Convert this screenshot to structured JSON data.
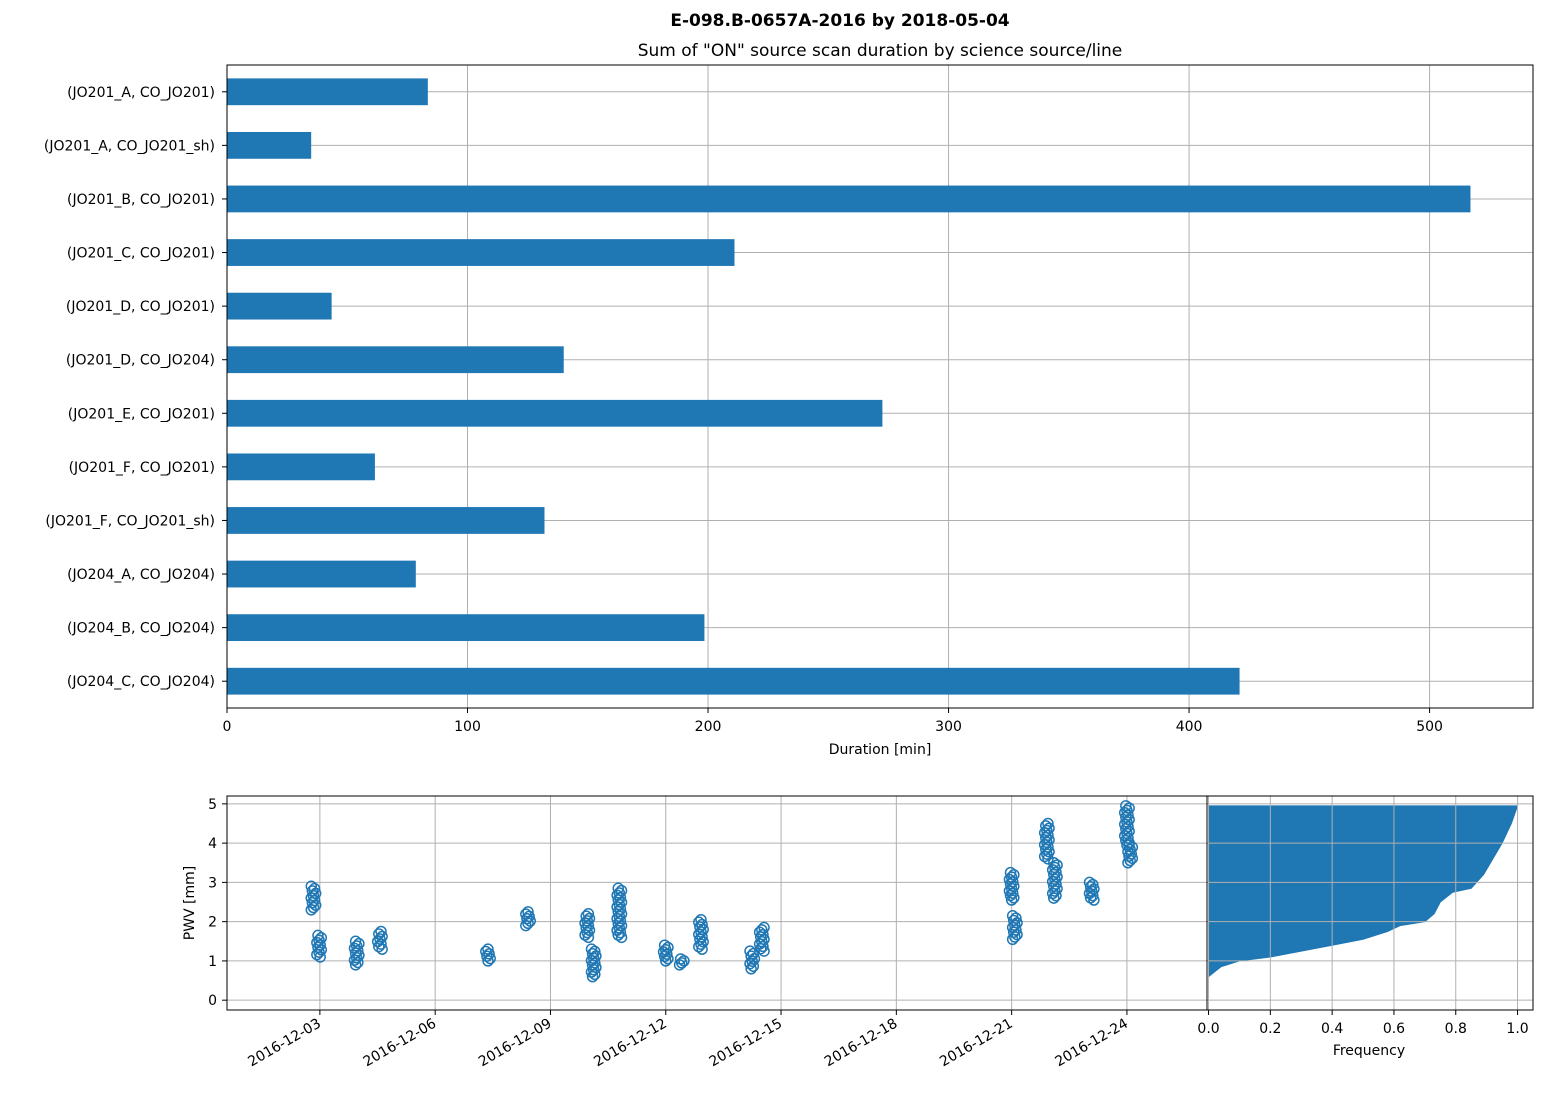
{
  "figure": {
    "suptitle": "E-098.B-0657A-2016 by 2018-05-04",
    "accent_color": "#1f77b4"
  },
  "chart_data": [
    {
      "type": "bar",
      "orientation": "horizontal",
      "title": "Sum of \"ON\" source scan duration by science source/line",
      "xlabel": "Duration [min]",
      "ylabel": "",
      "xlim": [
        0,
        543
      ],
      "xticks": [
        0,
        100,
        200,
        300,
        400,
        500
      ],
      "grid": true,
      "color": "#1f77b4",
      "categories": [
        "(JO201_A, CO_JO201)",
        "(JO201_A, CO_JO201_sh)",
        "(JO201_B, CO_JO201)",
        "(JO201_C, CO_JO201)",
        "(JO201_D, CO_JO201)",
        "(JO201_D, CO_JO204)",
        "(JO201_E, CO_JO201)",
        "(JO201_F, CO_JO201)",
        "(JO201_F, CO_JO201_sh)",
        "(JO204_A, CO_JO204)",
        "(JO204_B, CO_JO204)",
        "(JO204_C, CO_JO204)"
      ],
      "values": [
        83.5,
        35,
        517,
        211,
        43.5,
        140,
        272.5,
        61.5,
        132,
        78.5,
        198.5,
        421
      ]
    },
    {
      "type": "scatter",
      "marker": "open-circle",
      "title": "",
      "xlabel": "",
      "ylabel": "PWV [mm]",
      "xlim": [
        "2016-11-30T14:00",
        "2016-12-26T02:00"
      ],
      "ylim": [
        -0.25,
        5.2
      ],
      "xticks": [
        "2016-12-03",
        "2016-12-06",
        "2016-12-09",
        "2016-12-12",
        "2016-12-15",
        "2016-12-18",
        "2016-12-21",
        "2016-12-24"
      ],
      "yticks": [
        0,
        1,
        2,
        3,
        4,
        5
      ],
      "grid": true,
      "color": "#1f77b4",
      "clusters": [
        {
          "x": "2016-12-02T20:00",
          "y_min": 2.3,
          "y_max": 2.9
        },
        {
          "x": "2016-12-02T23:30",
          "y_min": 1.1,
          "y_max": 1.65
        },
        {
          "x": "2016-12-03T23:00",
          "y_min": 0.9,
          "y_max": 1.5
        },
        {
          "x": "2016-12-04T13:30",
          "y_min": 1.3,
          "y_max": 1.75
        },
        {
          "x": "2016-12-07T09:00",
          "y_min": 1.0,
          "y_max": 1.3
        },
        {
          "x": "2016-12-08T10:00",
          "y_min": 1.9,
          "y_max": 2.25
        },
        {
          "x": "2016-12-09T23:00",
          "y_min": 1.6,
          "y_max": 2.2
        },
        {
          "x": "2016-12-10T03:00",
          "y_min": 0.6,
          "y_max": 1.3
        },
        {
          "x": "2016-12-10T19:00",
          "y_min": 1.6,
          "y_max": 2.85
        },
        {
          "x": "2016-12-12T00:00",
          "y_min": 1.0,
          "y_max": 1.4
        },
        {
          "x": "2016-12-12T10:00",
          "y_min": 0.9,
          "y_max": 1.05
        },
        {
          "x": "2016-12-12T22:00",
          "y_min": 1.3,
          "y_max": 2.05
        },
        {
          "x": "2016-12-14T06:00",
          "y_min": 0.8,
          "y_max": 1.25
        },
        {
          "x": "2016-12-14T12:00",
          "y_min": 1.25,
          "y_max": 1.85
        },
        {
          "x": "2016-12-21T00:00",
          "y_min": 2.55,
          "y_max": 3.25
        },
        {
          "x": "2016-12-21T02:00",
          "y_min": 1.55,
          "y_max": 2.15
        },
        {
          "x": "2016-12-21T22:00",
          "y_min": 3.6,
          "y_max": 4.5
        },
        {
          "x": "2016-12-22T03:00",
          "y_min": 2.6,
          "y_max": 3.5
        },
        {
          "x": "2016-12-23T02:00",
          "y_min": 2.55,
          "y_max": 3.0
        },
        {
          "x": "2016-12-24T00:00",
          "y_min": 3.95,
          "y_max": 4.95
        },
        {
          "x": "2016-12-24T02:00",
          "y_min": 3.5,
          "y_max": 3.95
        }
      ]
    },
    {
      "type": "area",
      "description_kind": "horizontal cumulative histogram",
      "title": "",
      "xlabel": "Frequency",
      "ylabel": "",
      "xlim": [
        -0.005,
        1.05
      ],
      "ylim": [
        -0.25,
        5.2
      ],
      "xticks": [
        "0.0",
        "0.2",
        "0.4",
        "0.6",
        "0.8",
        "1.0"
      ],
      "grid": true,
      "color": "#1f77b4",
      "curve": [
        {
          "pwv": 0.6,
          "frequency": 0.0
        },
        {
          "pwv": 0.85,
          "frequency": 0.04
        },
        {
          "pwv": 1.0,
          "frequency": 0.1
        },
        {
          "pwv": 1.1,
          "frequency": 0.2
        },
        {
          "pwv": 1.25,
          "frequency": 0.3
        },
        {
          "pwv": 1.4,
          "frequency": 0.4
        },
        {
          "pwv": 1.55,
          "frequency": 0.5
        },
        {
          "pwv": 1.75,
          "frequency": 0.58
        },
        {
          "pwv": 1.9,
          "frequency": 0.62
        },
        {
          "pwv": 2.0,
          "frequency": 0.7
        },
        {
          "pwv": 2.2,
          "frequency": 0.73
        },
        {
          "pwv": 2.5,
          "frequency": 0.75
        },
        {
          "pwv": 2.75,
          "frequency": 0.79
        },
        {
          "pwv": 2.85,
          "frequency": 0.85
        },
        {
          "pwv": 3.2,
          "frequency": 0.89
        },
        {
          "pwv": 3.6,
          "frequency": 0.92
        },
        {
          "pwv": 4.0,
          "frequency": 0.95
        },
        {
          "pwv": 4.5,
          "frequency": 0.98
        },
        {
          "pwv": 4.95,
          "frequency": 1.0
        }
      ]
    }
  ]
}
